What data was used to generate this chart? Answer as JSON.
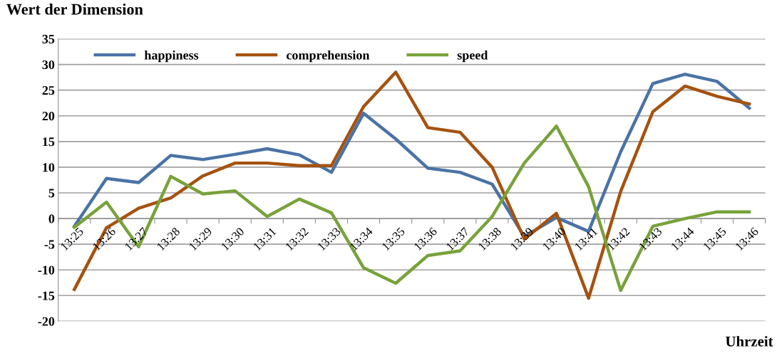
{
  "chart_data": {
    "type": "line",
    "title": "Wert der Dimension",
    "xlabel": "Uhrzeit",
    "categories": [
      "13:25",
      "13:26",
      "13:27",
      "13:28",
      "13:29",
      "13:30",
      "13:31",
      "13:32",
      "13:33",
      "13:34",
      "13:35",
      "13:36",
      "13:37",
      "13:38",
      "13:39",
      "13:40",
      "13:41",
      "13:42",
      "13:43",
      "13:44",
      "13:45",
      "13:46"
    ],
    "series": [
      {
        "name": "happiness",
        "color": "#4a72a6",
        "values": [
          -1.5,
          7.8,
          7,
          12.3,
          11.5,
          12.5,
          13.6,
          12.4,
          9,
          20.5,
          15.5,
          9.8,
          9,
          6.7,
          -3.5,
          0.2,
          -2.5,
          13,
          26.3,
          28.1,
          26.7,
          21.5
        ]
      },
      {
        "name": "comprehension",
        "color": "#a5520f",
        "values": [
          -13.8,
          -1.8,
          2,
          4,
          8.3,
          10.8,
          10.8,
          10.3,
          10.3,
          21.8,
          28.5,
          17.7,
          16.8,
          10,
          -4,
          1,
          -15.5,
          5.3,
          20.8,
          25.8,
          23.8,
          22.3
        ]
      },
      {
        "name": "speed",
        "color": "#78a23b",
        "values": [
          -1.7,
          3.2,
          -5.5,
          8.2,
          4.8,
          5.4,
          0.4,
          3.8,
          1.1,
          -9.6,
          -12.6,
          -7.2,
          -6.3,
          0.4,
          10.8,
          18,
          6.2,
          -14,
          -1.5,
          0,
          1.3,
          1.3
        ]
      }
    ],
    "ylim": [
      -20,
      35
    ],
    "yticks": [
      -20,
      -15,
      -10,
      -5,
      0,
      5,
      10,
      15,
      20,
      25,
      30,
      35
    ],
    "grid": "y",
    "legend": "top",
    "marker": "none",
    "line_style": "solid"
  }
}
